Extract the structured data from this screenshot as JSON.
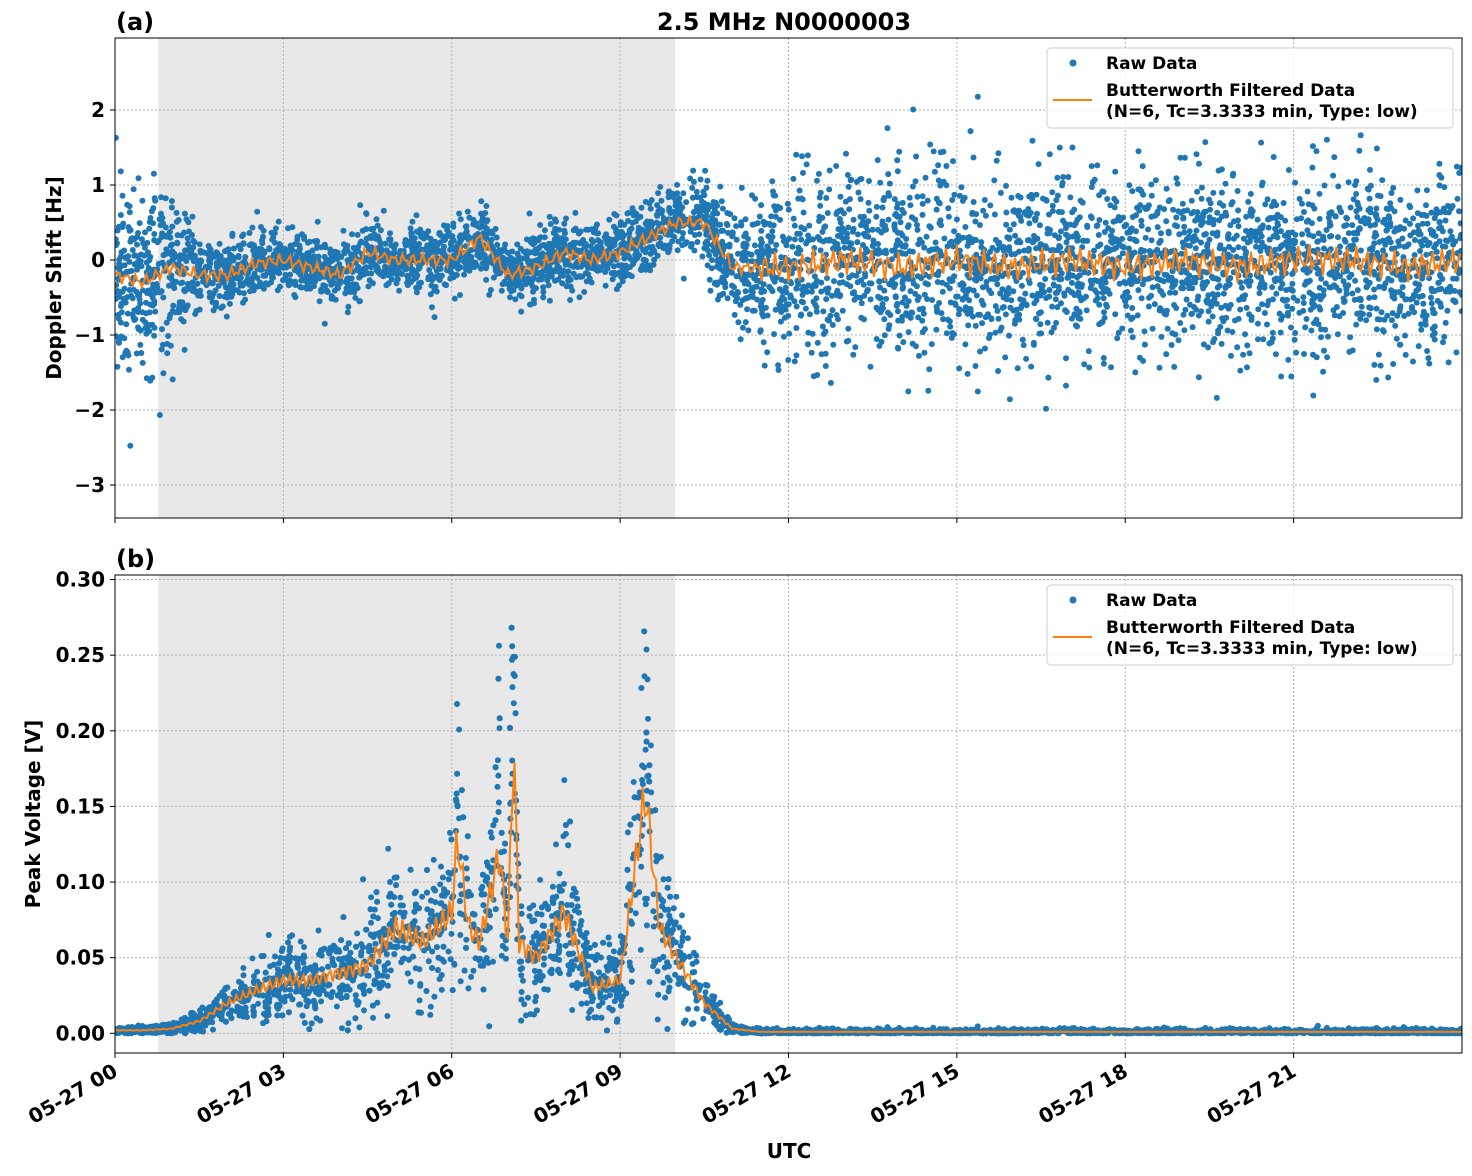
{
  "title": "2.5 MHz N0000003",
  "xlabel": "UTC",
  "chart_data": [
    {
      "type": "scatter",
      "panel_label": "(a)",
      "ylabel": "Doppler Shift [Hz]",
      "ylim": [
        -3.44,
        2.96
      ],
      "xlim_hours": [
        0,
        24
      ],
      "yticks": [
        2,
        1,
        0,
        -1,
        -2,
        -3
      ],
      "ytick_labels": [
        "2",
        "1",
        "0",
        "−1",
        "−2",
        "−3"
      ],
      "grid": true,
      "shaded_region_hours": [
        0.77,
        9.98
      ],
      "legend": {
        "placement": "upper-right",
        "entries": [
          "Raw Data",
          "Butterworth Filtered Data",
          "(N=6, Tc=3.3333 min, Type: low)"
        ]
      },
      "filtered": {
        "x_hours": [
          0,
          0.5,
          1,
          1.5,
          2,
          2.5,
          3,
          3.5,
          4,
          4.5,
          5,
          5.5,
          6,
          6.5,
          7,
          7.5,
          8,
          8.5,
          9,
          9.5,
          10,
          10.5,
          11,
          11.5,
          12,
          13,
          14,
          15,
          16,
          17,
          18,
          19,
          20,
          21,
          22,
          23,
          24
        ],
        "y": [
          -0.2,
          -0.3,
          -0.1,
          -0.2,
          -0.2,
          -0.05,
          0.0,
          -0.1,
          -0.2,
          0.1,
          0.0,
          0.0,
          0.0,
          0.3,
          -0.2,
          -0.1,
          0.1,
          0.0,
          0.1,
          0.3,
          0.5,
          0.5,
          -0.1,
          -0.1,
          -0.1,
          0.0,
          -0.1,
          0.0,
          -0.1,
          0.0,
          -0.1,
          0.0,
          -0.1,
          0.0,
          0.0,
          -0.1,
          0.0
        ]
      },
      "raw_spread": {
        "x_hours": [
          0,
          1,
          1.5,
          2,
          10,
          10.5,
          11.5,
          12,
          24
        ],
        "half_width": [
          1.5,
          1.2,
          0.6,
          0.5,
          0.5,
          0.7,
          1.0,
          1.3,
          1.3
        ]
      }
    },
    {
      "type": "scatter",
      "panel_label": "(b)",
      "ylabel": "Peak Voltage [V]",
      "ylim": [
        -0.013,
        0.303
      ],
      "xlim_hours": [
        0,
        24
      ],
      "yticks": [
        0.0,
        0.05,
        0.1,
        0.15,
        0.2,
        0.25,
        0.3
      ],
      "ytick_labels": [
        "0.00",
        "0.05",
        "0.10",
        "0.15",
        "0.20",
        "0.25",
        "0.30"
      ],
      "grid": true,
      "shaded_region_hours": [
        0.77,
        9.98
      ],
      "legend": {
        "placement": "upper-right",
        "entries": [
          "Raw Data",
          "Butterworth Filtered Data",
          "(N=6, Tc=3.3333 min, Type: low)"
        ]
      },
      "filtered": {
        "x_hours": [
          0,
          0.5,
          1,
          1.5,
          2,
          2.5,
          3,
          3.5,
          4,
          4.5,
          5,
          5.5,
          6,
          6.1,
          6.3,
          6.5,
          6.85,
          7,
          7.1,
          7.2,
          7.5,
          8,
          8.5,
          9,
          9.45,
          9.7,
          10,
          10.5,
          11,
          11.5,
          12,
          24
        ],
        "y": [
          0.002,
          0.002,
          0.003,
          0.008,
          0.02,
          0.028,
          0.035,
          0.035,
          0.04,
          0.045,
          0.07,
          0.06,
          0.08,
          0.13,
          0.07,
          0.06,
          0.12,
          0.06,
          0.2,
          0.06,
          0.05,
          0.08,
          0.03,
          0.035,
          0.16,
          0.07,
          0.05,
          0.02,
          0.003,
          0.001,
          0.001,
          0.001
        ]
      },
      "raw_peaks": {
        "x_hours": [
          6.1,
          6.85,
          7.1,
          8.0,
          9.45
        ],
        "y": [
          0.23,
          0.26,
          0.27,
          0.18,
          0.29
        ]
      }
    }
  ],
  "xticks_hours": [
    0,
    3,
    6,
    9,
    12,
    15,
    18,
    21
  ],
  "xtick_labels": [
    "05-27 00",
    "05-27 03",
    "05-27 06",
    "05-27 09",
    "05-27 12",
    "05-27 15",
    "05-27 18",
    "05-27 21"
  ],
  "colors": {
    "raw": "#1f77b4",
    "filtered": "#ff7f0e",
    "shade": "#e8e8e8",
    "grid": "#b0b0b0"
  }
}
